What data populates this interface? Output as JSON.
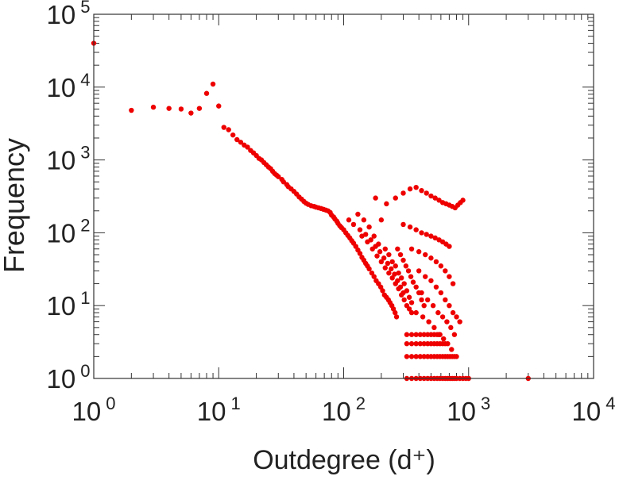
{
  "chart_data": {
    "type": "scatter",
    "title": "",
    "xlabel": "Outdegree (d⁺)",
    "ylabel": "Frequency",
    "x_scale": "log",
    "y_scale": "log",
    "xlim": [
      1,
      10000
    ],
    "ylim": [
      1,
      100000
    ],
    "x_ticks": [
      {
        "base": "10",
        "exp": "0",
        "value": 1
      },
      {
        "base": "10",
        "exp": "1",
        "value": 10
      },
      {
        "base": "10",
        "exp": "2",
        "value": 100
      },
      {
        "base": "10",
        "exp": "3",
        "value": 1000
      },
      {
        "base": "10",
        "exp": "4",
        "value": 10000
      }
    ],
    "y_ticks": [
      {
        "base": "10",
        "exp": "0",
        "value": 1
      },
      {
        "base": "10",
        "exp": "1",
        "value": 10
      },
      {
        "base": "10",
        "exp": "2",
        "value": 100
      },
      {
        "base": "10",
        "exp": "3",
        "value": 1000
      },
      {
        "base": "10",
        "exp": "4",
        "value": 10000
      },
      {
        "base": "10",
        "exp": "5",
        "value": 100000
      }
    ],
    "grid": false,
    "legend": "none",
    "marker_color": "#ee0000",
    "axis_color": "#333333",
    "series": [
      {
        "points": [
          [
            1,
            40000
          ],
          [
            2,
            4800
          ],
          [
            3,
            5300
          ],
          [
            4,
            5100
          ],
          [
            5,
            5000
          ],
          [
            6,
            4400
          ],
          [
            7,
            5100
          ],
          [
            8,
            8200
          ],
          [
            9,
            11000
          ],
          [
            10,
            5500
          ],
          [
            11,
            2800
          ],
          [
            12,
            2600
          ],
          [
            13,
            2200
          ],
          [
            14,
            1900
          ],
          [
            15,
            1750
          ],
          [
            16,
            1600
          ],
          [
            17,
            1500
          ],
          [
            18,
            1350
          ],
          [
            19,
            1250
          ],
          [
            20,
            1150
          ],
          [
            21,
            1050
          ],
          [
            22,
            1000
          ],
          [
            23,
            920
          ],
          [
            24,
            860
          ],
          [
            25,
            800
          ],
          [
            26,
            760
          ],
          [
            27,
            700
          ],
          [
            28,
            650
          ],
          [
            29,
            620
          ],
          [
            30,
            590
          ],
          [
            32,
            540
          ],
          [
            33,
            500
          ],
          [
            35,
            460
          ],
          [
            36,
            430
          ],
          [
            38,
            400
          ],
          [
            40,
            370
          ],
          [
            42,
            340
          ],
          [
            44,
            310
          ],
          [
            46,
            290
          ],
          [
            48,
            270
          ],
          [
            50,
            255
          ],
          [
            52,
            245
          ],
          [
            55,
            235
          ],
          [
            58,
            230
          ],
          [
            60,
            225
          ],
          [
            63,
            220
          ],
          [
            66,
            215
          ],
          [
            69,
            210
          ],
          [
            72,
            205
          ],
          [
            75,
            200
          ],
          [
            78,
            190
          ],
          [
            80,
            175
          ],
          [
            83,
            165
          ],
          [
            85,
            155
          ],
          [
            88,
            145
          ],
          [
            90,
            135
          ],
          [
            93,
            125
          ],
          [
            96,
            118
          ],
          [
            100,
            110
          ],
          [
            104,
            100
          ],
          [
            108,
            92
          ],
          [
            112,
            85
          ],
          [
            116,
            78
          ],
          [
            120,
            72
          ],
          [
            125,
            65
          ],
          [
            130,
            58
          ],
          [
            135,
            52
          ],
          [
            140,
            46
          ],
          [
            145,
            42
          ],
          [
            150,
            38
          ],
          [
            155,
            35
          ],
          [
            160,
            32
          ],
          [
            168,
            28
          ],
          [
            175,
            25
          ],
          [
            182,
            22
          ],
          [
            190,
            20
          ],
          [
            198,
            18
          ],
          [
            205,
            16
          ],
          [
            212,
            14
          ],
          [
            220,
            13
          ],
          [
            228,
            12
          ],
          [
            235,
            11
          ],
          [
            243,
            10
          ],
          [
            250,
            9
          ],
          [
            258,
            8
          ],
          [
            265,
            7
          ],
          [
            130,
            180
          ],
          [
            145,
            150
          ],
          [
            160,
            120
          ],
          [
            175,
            90
          ],
          [
            190,
            70
          ],
          [
            200,
            150
          ],
          [
            215,
            60
          ],
          [
            230,
            50
          ],
          [
            245,
            40
          ],
          [
            260,
            35
          ],
          [
            275,
            28
          ],
          [
            290,
            24
          ],
          [
            305,
            20
          ],
          [
            320,
            16
          ],
          [
            335,
            13
          ],
          [
            350,
            11
          ],
          [
            140,
            90
          ],
          [
            155,
            75
          ],
          [
            170,
            60
          ],
          [
            185,
            48
          ],
          [
            200,
            40
          ],
          [
            215,
            33
          ],
          [
            230,
            28
          ],
          [
            245,
            24
          ],
          [
            260,
            20
          ],
          [
            275,
            17
          ],
          [
            290,
            14
          ],
          [
            305,
            12
          ],
          [
            320,
            10
          ],
          [
            335,
            9
          ],
          [
            350,
            8
          ],
          [
            110,
            150
          ],
          [
            120,
            130
          ],
          [
            135,
            110
          ],
          [
            150,
            95
          ],
          [
            165,
            80
          ],
          [
            180,
            65
          ],
          [
            195,
            55
          ],
          [
            210,
            45
          ],
          [
            225,
            38
          ],
          [
            240,
            32
          ],
          [
            255,
            27
          ],
          [
            270,
            22
          ],
          [
            285,
            18
          ],
          [
            300,
            15
          ],
          [
            270,
            60
          ],
          [
            285,
            50
          ],
          [
            300,
            42
          ],
          [
            315,
            35
          ],
          [
            330,
            30
          ],
          [
            345,
            25
          ],
          [
            360,
            21
          ],
          [
            380,
            18
          ],
          [
            400,
            15
          ],
          [
            420,
            12
          ],
          [
            440,
            10
          ],
          [
            180,
            300
          ],
          [
            220,
            250
          ],
          [
            260,
            300
          ],
          [
            300,
            350
          ],
          [
            340,
            400
          ],
          [
            380,
            420
          ],
          [
            420,
            380
          ],
          [
            460,
            350
          ],
          [
            500,
            320
          ],
          [
            540,
            300
          ],
          [
            580,
            280
          ],
          [
            620,
            260
          ],
          [
            660,
            250
          ],
          [
            700,
            240
          ],
          [
            740,
            230
          ],
          [
            780,
            220
          ],
          [
            820,
            240
          ],
          [
            860,
            260
          ],
          [
            900,
            280
          ],
          [
            300,
            130
          ],
          [
            340,
            120
          ],
          [
            380,
            110
          ],
          [
            420,
            100
          ],
          [
            460,
            95
          ],
          [
            500,
            90
          ],
          [
            540,
            85
          ],
          [
            580,
            80
          ],
          [
            620,
            75
          ],
          [
            660,
            70
          ],
          [
            700,
            65
          ],
          [
            350,
            60
          ],
          [
            400,
            55
          ],
          [
            450,
            50
          ],
          [
            500,
            45
          ],
          [
            550,
            40
          ],
          [
            600,
            35
          ],
          [
            650,
            30
          ],
          [
            700,
            25
          ],
          [
            750,
            20
          ],
          [
            400,
            30
          ],
          [
            450,
            25
          ],
          [
            500,
            22
          ],
          [
            550,
            18
          ],
          [
            600,
            15
          ],
          [
            650,
            12
          ],
          [
            700,
            10
          ],
          [
            750,
            8
          ],
          [
            800,
            7
          ],
          [
            850,
            6
          ],
          [
            420,
            15
          ],
          [
            470,
            12
          ],
          [
            520,
            10
          ],
          [
            570,
            8
          ],
          [
            620,
            7
          ],
          [
            670,
            6
          ],
          [
            720,
            5
          ],
          [
            770,
            4
          ],
          [
            380,
            8
          ],
          [
            430,
            7
          ],
          [
            480,
            6
          ],
          [
            530,
            5
          ],
          [
            580,
            4
          ],
          [
            630,
            3.5
          ],
          [
            680,
            3
          ],
          [
            730,
            2.5
          ],
          [
            320,
            3
          ],
          [
            350,
            3
          ],
          [
            380,
            3
          ],
          [
            410,
            3
          ],
          [
            440,
            3
          ],
          [
            470,
            3
          ],
          [
            500,
            3
          ],
          [
            530,
            3
          ],
          [
            560,
            3
          ],
          [
            590,
            3
          ],
          [
            620,
            3
          ],
          [
            650,
            3
          ],
          [
            320,
            2
          ],
          [
            350,
            2
          ],
          [
            380,
            2
          ],
          [
            410,
            2
          ],
          [
            440,
            2
          ],
          [
            470,
            2
          ],
          [
            500,
            2
          ],
          [
            530,
            2
          ],
          [
            560,
            2
          ],
          [
            590,
            2
          ],
          [
            620,
            2
          ],
          [
            650,
            2
          ],
          [
            680,
            2
          ],
          [
            710,
            2
          ],
          [
            740,
            2
          ],
          [
            770,
            2
          ],
          [
            800,
            2
          ],
          [
            320,
            4
          ],
          [
            350,
            4
          ],
          [
            380,
            4
          ],
          [
            410,
            4
          ],
          [
            440,
            4
          ],
          [
            470,
            4
          ],
          [
            500,
            4
          ],
          [
            530,
            4
          ],
          [
            560,
            4
          ],
          [
            590,
            4
          ],
          [
            320,
            1
          ],
          [
            350,
            1
          ],
          [
            380,
            1
          ],
          [
            410,
            1
          ],
          [
            440,
            1
          ],
          [
            470,
            1
          ],
          [
            500,
            1
          ],
          [
            530,
            1
          ],
          [
            560,
            1
          ],
          [
            590,
            1
          ],
          [
            620,
            1
          ],
          [
            650,
            1
          ],
          [
            680,
            1
          ],
          [
            710,
            1
          ],
          [
            740,
            1
          ],
          [
            770,
            1
          ],
          [
            800,
            1
          ],
          [
            850,
            1
          ],
          [
            900,
            1
          ],
          [
            950,
            1
          ],
          [
            1000,
            1
          ],
          [
            3000,
            1
          ]
        ]
      }
    ]
  }
}
